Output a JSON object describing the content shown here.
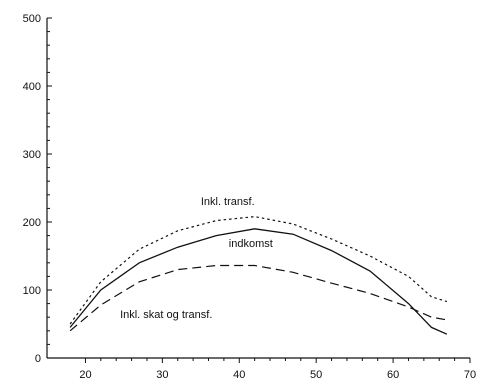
{
  "chart_data": {
    "type": "line",
    "title": "",
    "xlabel": "",
    "ylabel": "",
    "xlim": [
      15,
      70
    ],
    "ylim": [
      0,
      500
    ],
    "x_ticks": [
      20,
      30,
      40,
      50,
      60,
      70
    ],
    "y_ticks": [
      0,
      100,
      200,
      300,
      400,
      500
    ],
    "grid": false,
    "legend": "none",
    "series": [
      {
        "name": "Inkl. transf.",
        "style": "dotted",
        "color": "#111111",
        "x": [
          18,
          22,
          27,
          32,
          37,
          42,
          47,
          52,
          57,
          62,
          65,
          67
        ],
        "y": [
          50,
          112,
          160,
          187,
          202,
          208,
          197,
          175,
          150,
          120,
          90,
          83
        ]
      },
      {
        "name": "indkomst",
        "style": "solid",
        "color": "#111111",
        "x": [
          18,
          22,
          27,
          32,
          37,
          42,
          47,
          52,
          57,
          62,
          65,
          67
        ],
        "y": [
          45,
          100,
          140,
          163,
          180,
          190,
          182,
          158,
          128,
          80,
          45,
          35
        ]
      },
      {
        "name": "Inkl. skat og transf.",
        "style": "dashed",
        "color": "#111111",
        "x": [
          18,
          22,
          27,
          32,
          37,
          42,
          47,
          52,
          57,
          62,
          65,
          67
        ],
        "y": [
          40,
          78,
          112,
          130,
          136,
          136,
          126,
          110,
          95,
          75,
          60,
          56
        ]
      }
    ]
  }
}
